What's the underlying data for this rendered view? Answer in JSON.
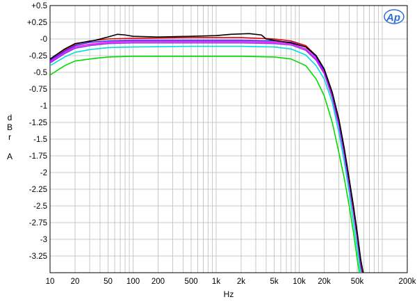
{
  "chart_data": {
    "type": "line",
    "xlabel": "Hz",
    "ylabel_lines": [
      "d",
      "B",
      "r",
      "",
      "A"
    ],
    "x_scale": "log",
    "xlim": [
      10,
      200000
    ],
    "ylim": [
      -3.5,
      0.5
    ],
    "grid": true,
    "x_ticks": [
      {
        "value": 10,
        "label": "10"
      },
      {
        "value": 20,
        "label": "20"
      },
      {
        "value": 50,
        "label": "50"
      },
      {
        "value": 100,
        "label": "100"
      },
      {
        "value": 200,
        "label": "200"
      },
      {
        "value": 500,
        "label": "500"
      },
      {
        "value": 1000,
        "label": "1k"
      },
      {
        "value": 2000,
        "label": "2k"
      },
      {
        "value": 5000,
        "label": "5k"
      },
      {
        "value": 10000,
        "label": "10k"
      },
      {
        "value": 20000,
        "label": "20k"
      },
      {
        "value": 50000,
        "label": "50k"
      },
      {
        "value": 200000,
        "label": "200k"
      }
    ],
    "y_ticks": [
      {
        "value": 0.5,
        "label": "+0.5"
      },
      {
        "value": 0.25,
        "label": "+0.25"
      },
      {
        "value": 0,
        "label": "-0"
      },
      {
        "value": -0.25,
        "label": "-0.25"
      },
      {
        "value": -0.5,
        "label": "-0.5"
      },
      {
        "value": -0.75,
        "label": "-0.75"
      },
      {
        "value": -1,
        "label": "-1"
      },
      {
        "value": -1.25,
        "label": "-1.25"
      },
      {
        "value": -1.5,
        "label": "-1.5"
      },
      {
        "value": -1.75,
        "label": "-1.75"
      },
      {
        "value": -2,
        "label": "-2"
      },
      {
        "value": -2.25,
        "label": "-2.25"
      },
      {
        "value": -2.5,
        "label": "-2.5"
      },
      {
        "value": -2.75,
        "label": "-2.75"
      },
      {
        "value": -3,
        "label": "-3"
      },
      {
        "value": -3.25,
        "label": "-3.25"
      }
    ],
    "series": [
      {
        "color": "#00dd00",
        "points": [
          [
            10,
            -0.54
          ],
          [
            15,
            -0.4
          ],
          [
            20,
            -0.33
          ],
          [
            30,
            -0.3
          ],
          [
            50,
            -0.27
          ],
          [
            100,
            -0.26
          ],
          [
            500,
            -0.26
          ],
          [
            2000,
            -0.26
          ],
          [
            5000,
            -0.27
          ],
          [
            8000,
            -0.3
          ],
          [
            12000,
            -0.4
          ],
          [
            16000,
            -0.6
          ],
          [
            20000,
            -0.85
          ],
          [
            25000,
            -1.25
          ],
          [
            30000,
            -1.7
          ],
          [
            35000,
            -2.1
          ],
          [
            40000,
            -2.5
          ],
          [
            45000,
            -2.9
          ],
          [
            50000,
            -3.3
          ],
          [
            53000,
            -3.5
          ]
        ]
      },
      {
        "color": "#00dddd",
        "points": [
          [
            10,
            -0.4
          ],
          [
            15,
            -0.27
          ],
          [
            20,
            -0.2
          ],
          [
            30,
            -0.16
          ],
          [
            50,
            -0.13
          ],
          [
            100,
            -0.12
          ],
          [
            500,
            -0.11
          ],
          [
            2000,
            -0.11
          ],
          [
            5000,
            -0.12
          ],
          [
            8000,
            -0.15
          ],
          [
            12000,
            -0.24
          ],
          [
            16000,
            -0.4
          ],
          [
            20000,
            -0.6
          ],
          [
            25000,
            -0.95
          ],
          [
            30000,
            -1.4
          ],
          [
            35000,
            -1.85
          ],
          [
            40000,
            -2.3
          ],
          [
            45000,
            -2.75
          ],
          [
            50000,
            -3.15
          ],
          [
            55000,
            -3.5
          ]
        ]
      },
      {
        "color": "#8a3ce0",
        "points": [
          [
            10,
            -0.36
          ],
          [
            15,
            -0.22
          ],
          [
            20,
            -0.14
          ],
          [
            30,
            -0.1
          ],
          [
            50,
            -0.07
          ],
          [
            100,
            -0.06
          ],
          [
            500,
            -0.06
          ],
          [
            2000,
            -0.06
          ],
          [
            5000,
            -0.07
          ],
          [
            8000,
            -0.09
          ],
          [
            12000,
            -0.17
          ],
          [
            16000,
            -0.32
          ],
          [
            20000,
            -0.52
          ],
          [
            25000,
            -0.88
          ],
          [
            30000,
            -1.3
          ],
          [
            35000,
            -1.75
          ],
          [
            40000,
            -2.2
          ],
          [
            45000,
            -2.6
          ],
          [
            50000,
            -3.0
          ],
          [
            55000,
            -3.4
          ],
          [
            57000,
            -3.5
          ]
        ]
      },
      {
        "color": "#ff00ff",
        "points": [
          [
            10,
            -0.34
          ],
          [
            15,
            -0.2
          ],
          [
            20,
            -0.12
          ],
          [
            30,
            -0.08
          ],
          [
            50,
            -0.05
          ],
          [
            100,
            -0.04
          ],
          [
            500,
            -0.04
          ],
          [
            2000,
            -0.04
          ],
          [
            5000,
            -0.05
          ],
          [
            8000,
            -0.07
          ],
          [
            12000,
            -0.15
          ],
          [
            16000,
            -0.3
          ],
          [
            20000,
            -0.5
          ],
          [
            25000,
            -0.85
          ],
          [
            30000,
            -1.27
          ],
          [
            35000,
            -1.72
          ],
          [
            40000,
            -2.17
          ],
          [
            45000,
            -2.58
          ],
          [
            50000,
            -2.98
          ],
          [
            55000,
            -3.38
          ],
          [
            57500,
            -3.5
          ]
        ]
      },
      {
        "color": "#2a2aff",
        "points": [
          [
            10,
            -0.32
          ],
          [
            15,
            -0.18
          ],
          [
            20,
            -0.1
          ],
          [
            30,
            -0.05
          ],
          [
            50,
            -0.03
          ],
          [
            100,
            -0.02
          ],
          [
            500,
            -0.02
          ],
          [
            2000,
            -0.02
          ],
          [
            5000,
            -0.03
          ],
          [
            8000,
            -0.05
          ],
          [
            12000,
            -0.12
          ],
          [
            16000,
            -0.27
          ],
          [
            20000,
            -0.47
          ],
          [
            25000,
            -0.82
          ],
          [
            30000,
            -1.23
          ],
          [
            35000,
            -1.68
          ],
          [
            40000,
            -2.13
          ],
          [
            45000,
            -2.55
          ],
          [
            50000,
            -2.95
          ],
          [
            55000,
            -3.35
          ],
          [
            58000,
            -3.5
          ]
        ]
      },
      {
        "color": "#dd0000",
        "points": [
          [
            10,
            -0.3
          ],
          [
            15,
            -0.16
          ],
          [
            20,
            -0.08
          ],
          [
            30,
            -0.03
          ],
          [
            50,
            0.0
          ],
          [
            100,
            0.01
          ],
          [
            500,
            0.02
          ],
          [
            2000,
            0.02
          ],
          [
            5000,
            0.0
          ],
          [
            8000,
            -0.03
          ],
          [
            12000,
            -0.1
          ],
          [
            16000,
            -0.25
          ],
          [
            20000,
            -0.45
          ],
          [
            25000,
            -0.8
          ],
          [
            30000,
            -1.2
          ],
          [
            35000,
            -1.65
          ],
          [
            40000,
            -2.1
          ],
          [
            45000,
            -2.52
          ],
          [
            50000,
            -2.92
          ],
          [
            55000,
            -3.32
          ],
          [
            58500,
            -3.5
          ]
        ]
      },
      {
        "color": "#000000",
        "points": [
          [
            10,
            -0.3
          ],
          [
            15,
            -0.15
          ],
          [
            20,
            -0.07
          ],
          [
            25,
            -0.05
          ],
          [
            35,
            -0.02
          ],
          [
            50,
            0.03
          ],
          [
            65,
            0.07
          ],
          [
            80,
            0.06
          ],
          [
            100,
            0.04
          ],
          [
            200,
            0.03
          ],
          [
            500,
            0.04
          ],
          [
            1000,
            0.05
          ],
          [
            1500,
            0.07
          ],
          [
            2500,
            0.08
          ],
          [
            3500,
            0.06
          ],
          [
            4000,
            0.0
          ],
          [
            5000,
            -0.02
          ],
          [
            8000,
            -0.06
          ],
          [
            12000,
            -0.12
          ],
          [
            16000,
            -0.25
          ],
          [
            20000,
            -0.45
          ],
          [
            25000,
            -0.8
          ],
          [
            30000,
            -1.2
          ],
          [
            35000,
            -1.65
          ],
          [
            40000,
            -2.1
          ],
          [
            45000,
            -2.5
          ],
          [
            50000,
            -2.9
          ],
          [
            55000,
            -3.3
          ],
          [
            59000,
            -3.5
          ]
        ]
      }
    ]
  },
  "logo": {
    "text": "Ap"
  }
}
